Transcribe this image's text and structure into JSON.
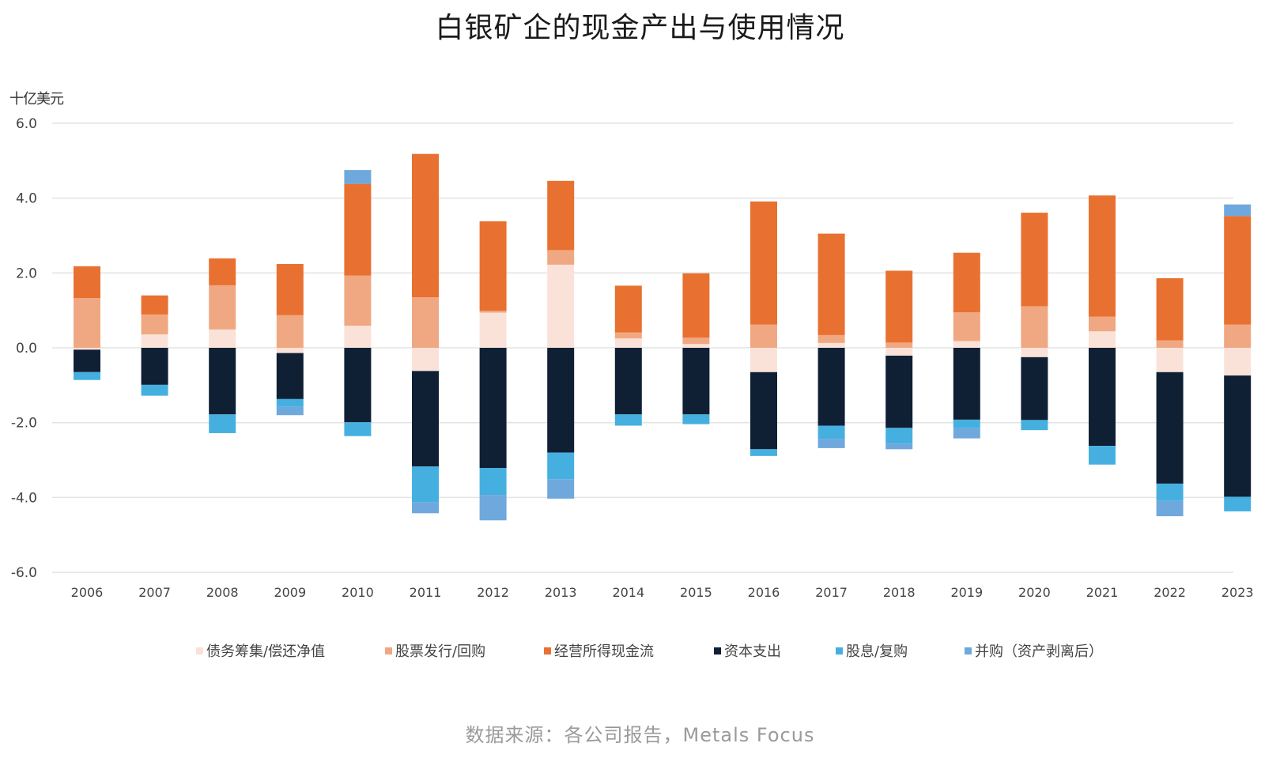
{
  "chart_data": {
    "type": "bar",
    "stacked": true,
    "title": "白银矿企的现金产出与使用情况",
    "ylabel": "十亿美元",
    "xlabel": "",
    "ylim": [
      -6.0,
      6.0
    ],
    "yticks": [
      "6.0",
      "4.0",
      "2.0",
      "0.0",
      "-2.0",
      "-4.0",
      "-6.0"
    ],
    "ytick_values": [
      6,
      4,
      2,
      0,
      -2,
      -4,
      -6
    ],
    "grid": true,
    "legend_position": "bottom",
    "categories": [
      "2006",
      "2007",
      "2008",
      "2009",
      "2010",
      "2011",
      "2012",
      "2013",
      "2014",
      "2015",
      "2016",
      "2017",
      "2018",
      "2019",
      "2020",
      "2021",
      "2022",
      "2023"
    ],
    "series": [
      {
        "name": "债务筹集/偿还净值",
        "color": "#FAE2D8",
        "values": [
          -0.05,
          0.36,
          0.49,
          -0.14,
          0.59,
          -0.62,
          0.94,
          2.22,
          0.25,
          0.1,
          -0.65,
          0.13,
          -0.21,
          0.18,
          -0.25,
          0.44,
          -0.65,
          -0.74
        ]
      },
      {
        "name": "股票发行/回购",
        "color": "#F0A882",
        "values": [
          1.33,
          0.53,
          1.18,
          0.87,
          1.34,
          1.35,
          0.05,
          0.39,
          0.16,
          0.17,
          0.62,
          0.21,
          0.14,
          0.77,
          1.11,
          0.39,
          0.2,
          0.62
        ]
      },
      {
        "name": "经营所得现金流",
        "color": "#E87131",
        "values": [
          0.85,
          0.51,
          0.72,
          1.37,
          2.45,
          3.83,
          2.39,
          1.85,
          1.25,
          1.72,
          3.29,
          2.71,
          1.92,
          1.59,
          2.5,
          3.24,
          1.66,
          2.9
        ]
      },
      {
        "name": "资本支出",
        "color": "#0F2035",
        "values": [
          -0.6,
          -0.99,
          -1.78,
          -1.23,
          -1.99,
          -2.55,
          -3.21,
          -2.8,
          -1.78,
          -1.78,
          -2.06,
          -2.08,
          -1.93,
          -1.92,
          -1.68,
          -2.62,
          -2.98,
          -3.24
        ]
      },
      {
        "name": "股息/复购",
        "color": "#45B0E0",
        "values": [
          -0.21,
          -0.29,
          -0.5,
          -0.21,
          -0.37,
          -0.95,
          -0.72,
          -0.71,
          -0.3,
          -0.26,
          -0.18,
          -0.35,
          -0.42,
          -0.23,
          -0.27,
          -0.5,
          -0.46,
          -0.39
        ]
      },
      {
        "name": "并购（资产剥离后）",
        "color": "#6FA8DC",
        "values": [
          0,
          0,
          0,
          -0.22,
          0.37,
          -0.3,
          -0.68,
          -0.52,
          0,
          0,
          0,
          -0.25,
          -0.15,
          -0.27,
          0,
          0,
          -0.41,
          0.31
        ]
      }
    ]
  },
  "source": "数据来源：各公司报告，Metals Focus"
}
